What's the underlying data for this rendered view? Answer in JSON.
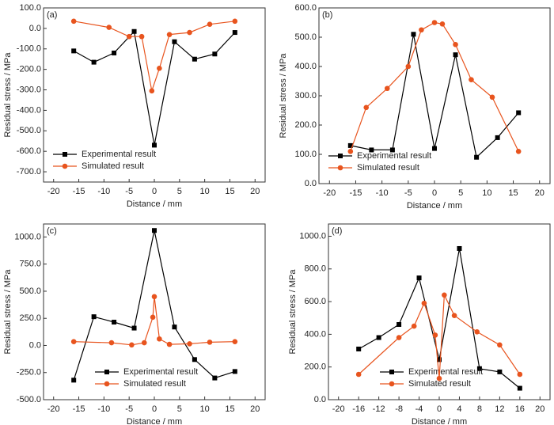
{
  "chart_data": [
    {
      "type": "line",
      "label": "(a)",
      "xlabel": "Distance / mm",
      "ylabel": "Residual stress / MPa",
      "legend": "lower left",
      "xlim": [
        -22,
        22
      ],
      "ylim": [
        -750,
        100
      ],
      "xticks": [
        -20,
        -15,
        -10,
        -5,
        0,
        5,
        10,
        15,
        20
      ],
      "yticks": [
        {
          "value": 100,
          "label": "100.0"
        },
        {
          "value": 0,
          "label": "0.0"
        },
        {
          "value": -100,
          "label": "-100.0"
        },
        {
          "value": -200,
          "label": "-200.0"
        },
        {
          "value": -300,
          "label": "-300.0"
        },
        {
          "value": -400,
          "label": "-400.0"
        },
        {
          "value": -500,
          "label": "-500.0"
        },
        {
          "value": -600,
          "label": "-600.0"
        },
        {
          "value": -700,
          "label": "-700.0"
        }
      ],
      "series": [
        {
          "name": "Experimental result",
          "color": "#000000",
          "marker": "square",
          "x": [
            -16,
            -12,
            -8,
            -4,
            0,
            4,
            8,
            12,
            16
          ],
          "values": [
            -110,
            -165,
            -120,
            -15,
            -570,
            -65,
            -150,
            -125,
            -20
          ]
        },
        {
          "name": "Simulated result",
          "color": "#e8541e",
          "marker": "circle",
          "x": [
            -16,
            -9,
            -5,
            -2.5,
            -0.5,
            1,
            3,
            7,
            11,
            16
          ],
          "values": [
            35,
            5,
            -40,
            -40,
            -305,
            -195,
            -30,
            -20,
            20,
            35
          ]
        }
      ]
    },
    {
      "type": "line",
      "label": "(b)",
      "xlabel": "Distance / mm",
      "ylabel": "Residual stress / MPa",
      "legend": "lower left",
      "xlim": [
        -22,
        22
      ],
      "ylim": [
        0,
        600
      ],
      "xticks": [
        -20,
        -15,
        -10,
        -5,
        0,
        5,
        10,
        15,
        20
      ],
      "yticks": [
        {
          "value": 0,
          "label": "0.0"
        },
        {
          "value": 100,
          "label": "100.0"
        },
        {
          "value": 200,
          "label": "200.0"
        },
        {
          "value": 300,
          "label": "300.0"
        },
        {
          "value": 400,
          "label": "400.0"
        },
        {
          "value": 500,
          "label": "500.0"
        },
        {
          "value": 600,
          "label": "600.0"
        }
      ],
      "series": [
        {
          "name": "Experimental result",
          "color": "#000000",
          "marker": "square",
          "x": [
            -16,
            -12,
            -8,
            -4,
            0,
            4,
            8,
            12,
            16
          ],
          "values": [
            130,
            115,
            115,
            510,
            120,
            440,
            90,
            157,
            242
          ]
        },
        {
          "name": "Simulated result",
          "color": "#e8541e",
          "marker": "circle",
          "x": [
            -16,
            -13,
            -9,
            -5,
            -2.5,
            0,
            1.5,
            4,
            7,
            11,
            16
          ],
          "values": [
            110,
            260,
            325,
            400,
            525,
            550,
            545,
            475,
            355,
            295,
            110
          ]
        }
      ]
    },
    {
      "type": "line",
      "label": "(c)",
      "xlabel": "Distance / mm",
      "ylabel": "Residual stress / MPa",
      "legend": "lower center",
      "xlim": [
        -22,
        22
      ],
      "ylim": [
        -500,
        1120
      ],
      "xticks": [
        -20,
        -15,
        -10,
        -5,
        0,
        5,
        10,
        15,
        20
      ],
      "yticks": [
        {
          "value": -500,
          "label": "-500.0"
        },
        {
          "value": -250,
          "label": "-250.0"
        },
        {
          "value": 0,
          "label": "0.0"
        },
        {
          "value": 250,
          "label": "250.0"
        },
        {
          "value": 500,
          "label": "500.0"
        },
        {
          "value": 750,
          "label": "750.0"
        },
        {
          "value": 1000,
          "label": "1000.0"
        }
      ],
      "series": [
        {
          "name": "Experimental result",
          "color": "#000000",
          "marker": "square",
          "x": [
            -16,
            -12,
            -8,
            -4,
            0,
            4,
            8,
            12,
            16
          ],
          "values": [
            -320,
            265,
            215,
            160,
            1060,
            170,
            -130,
            -300,
            -240
          ]
        },
        {
          "name": "Simulated result",
          "color": "#e8541e",
          "marker": "circle",
          "x": [
            -16,
            -8.5,
            -4.5,
            -2,
            -0.3,
            0,
            1,
            3,
            7,
            11,
            16
          ],
          "values": [
            35,
            25,
            5,
            25,
            260,
            450,
            60,
            10,
            15,
            30,
            35
          ]
        }
      ]
    },
    {
      "type": "line",
      "label": "(d)",
      "xlabel": "Distance / mm",
      "ylabel": "Residual stress / MPa",
      "legend": "lower center",
      "xlim": [
        -22,
        22
      ],
      "ylim": [
        0,
        1075
      ],
      "xticks": [
        -20,
        -16,
        -12,
        -8,
        -4,
        0,
        4,
        8,
        12,
        16,
        20
      ],
      "yticks": [
        {
          "value": 0,
          "label": "0.0"
        },
        {
          "value": 200,
          "label": "200.0"
        },
        {
          "value": 400,
          "label": "400.0"
        },
        {
          "value": 600,
          "label": "600.0"
        },
        {
          "value": 800,
          "label": "800.0"
        },
        {
          "value": 1000,
          "label": "1000.0"
        }
      ],
      "series": [
        {
          "name": "Experimental result",
          "color": "#000000",
          "marker": "square",
          "x": [
            -16,
            -12,
            -8,
            -4,
            0,
            4,
            8,
            12,
            16
          ],
          "values": [
            310,
            380,
            460,
            745,
            245,
            925,
            190,
            170,
            70
          ]
        },
        {
          "name": "Simulated result",
          "color": "#e8541e",
          "marker": "circle",
          "x": [
            -16,
            -8,
            -5,
            -3,
            -0.8,
            0,
            1,
            3,
            7.5,
            12,
            16
          ],
          "values": [
            155,
            380,
            450,
            590,
            395,
            130,
            640,
            515,
            415,
            335,
            155
          ]
        }
      ]
    }
  ]
}
